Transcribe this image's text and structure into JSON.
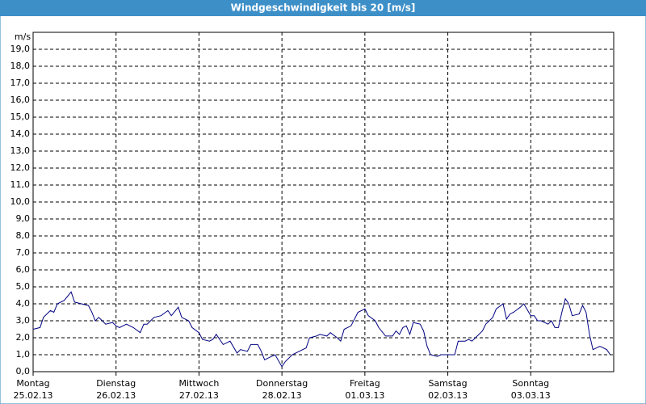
{
  "chart_data": {
    "type": "line",
    "title": "Windgeschwindigkeit bis 20 [m/s]",
    "y_unit": "m/s",
    "xlim": [
      0,
      168
    ],
    "ylim": [
      0,
      20
    ],
    "grid": true,
    "grid_style": "dashed",
    "xticks": [
      {
        "value": 0,
        "label": [
          "Montag",
          "25.02.13"
        ]
      },
      {
        "value": 24,
        "label": [
          "Dienstag",
          "26.02.13"
        ]
      },
      {
        "value": 48,
        "label": [
          "Mittwoch",
          "27.02.13"
        ]
      },
      {
        "value": 72,
        "label": [
          "Donnerstag",
          "28.02.13"
        ]
      },
      {
        "value": 96,
        "label": [
          "Freitag",
          "01.03.13"
        ]
      },
      {
        "value": 120,
        "label": [
          "Samstag",
          "02.03.13"
        ]
      },
      {
        "value": 144,
        "label": [
          "Sonntag",
          "03.03.13"
        ]
      }
    ],
    "yticks": [
      {
        "value": 0,
        "label": "0,0"
      },
      {
        "value": 1,
        "label": "1,0"
      },
      {
        "value": 2,
        "label": "2,0"
      },
      {
        "value": 3,
        "label": "3,0"
      },
      {
        "value": 4,
        "label": "4,0"
      },
      {
        "value": 5,
        "label": "5,0"
      },
      {
        "value": 6,
        "label": "6,0"
      },
      {
        "value": 7,
        "label": "7,0"
      },
      {
        "value": 8,
        "label": "8,0"
      },
      {
        "value": 9,
        "label": "9,0"
      },
      {
        "value": 10,
        "label": "10,0"
      },
      {
        "value": 11,
        "label": "11,0"
      },
      {
        "value": 12,
        "label": "12,0"
      },
      {
        "value": 13,
        "label": "13,0"
      },
      {
        "value": 14,
        "label": "14,0"
      },
      {
        "value": 15,
        "label": "15,0"
      },
      {
        "value": 16,
        "label": "16,0"
      },
      {
        "value": 17,
        "label": "17,0"
      },
      {
        "value": 18,
        "label": "18,0"
      },
      {
        "value": 19,
        "label": "19,0"
      }
    ],
    "series": [
      {
        "color": "#000080",
        "x": [
          0,
          2,
          3,
          5,
          6,
          7,
          9,
          11,
          12,
          14,
          16,
          17,
          18,
          19,
          21,
          23,
          24,
          25,
          27,
          29,
          31,
          32,
          33,
          35,
          37,
          39,
          40,
          42,
          43,
          45,
          46,
          48,
          49,
          51,
          52,
          53,
          55,
          57,
          59,
          60,
          62,
          63,
          65,
          66,
          67,
          68,
          70,
          72,
          73,
          75,
          77,
          79,
          80,
          82,
          83,
          85,
          86,
          88,
          89,
          90,
          92,
          94,
          96,
          97,
          99,
          100,
          102,
          104,
          105,
          106,
          107,
          108,
          109,
          110,
          112,
          113,
          114,
          115,
          117,
          118,
          120,
          122,
          123,
          125,
          126,
          127,
          128,
          130,
          131,
          133,
          134,
          136,
          137,
          138,
          139,
          141,
          142,
          144,
          145,
          146,
          147,
          149,
          150,
          151,
          152,
          153,
          154,
          155,
          156,
          158,
          159,
          160,
          161,
          162,
          164,
          166,
          167
        ],
        "values": [
          2.5,
          2.6,
          3.2,
          3.6,
          3.5,
          4.0,
          4.2,
          4.7,
          4.1,
          4.0,
          3.9,
          3.5,
          3.0,
          3.2,
          2.8,
          2.9,
          2.7,
          2.6,
          2.8,
          2.6,
          2.3,
          2.8,
          2.8,
          3.2,
          3.3,
          3.6,
          3.3,
          3.8,
          3.2,
          3.0,
          2.6,
          2.3,
          1.9,
          1.8,
          1.9,
          2.2,
          1.6,
          1.8,
          1.1,
          1.3,
          1.2,
          1.6,
          1.6,
          1.2,
          0.7,
          0.8,
          1.0,
          0.3,
          0.6,
          1.0,
          1.2,
          1.4,
          2.0,
          2.1,
          2.2,
          2.1,
          2.3,
          2.0,
          1.8,
          2.5,
          2.7,
          3.5,
          3.7,
          3.3,
          3.0,
          2.6,
          2.1,
          2.1,
          2.4,
          2.2,
          2.6,
          2.7,
          2.2,
          2.9,
          2.8,
          2.4,
          1.5,
          1.0,
          0.9,
          1.0,
          1.0,
          1.0,
          1.8,
          1.8,
          1.9,
          1.8,
          2.0,
          2.4,
          2.8,
          3.2,
          3.7,
          4.0,
          3.1,
          3.4,
          3.5,
          3.8,
          4.0,
          3.3,
          3.3,
          3.0,
          3.0,
          2.8,
          3.0,
          2.6,
          2.6,
          3.5,
          4.3,
          4.0,
          3.3,
          3.4,
          3.9,
          3.5,
          2.2,
          1.3,
          1.5,
          1.3,
          1.0
        ]
      }
    ]
  }
}
